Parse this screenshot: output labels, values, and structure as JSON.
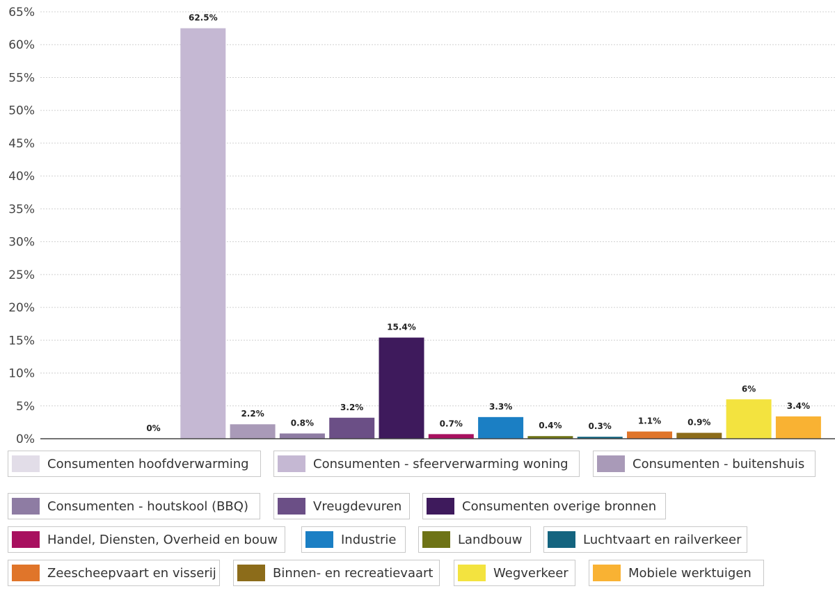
{
  "chart_data": {
    "type": "bar",
    "categories": [
      "Consumenten hoofdverwarming",
      "Consumenten - sfeerverwarming woning",
      "Consumenten - buitenshuis",
      "Consumenten - houtskool (BBQ)",
      "Vreugdevuren",
      "Consumenten overige bronnen",
      "Handel, Diensten, Overheid en bouw",
      "Industrie",
      "Landbouw",
      "Luchtvaart en railverkeer",
      "Zeescheepvaart en visserij",
      "Binnen- en recreatievaart",
      "Wegverkeer",
      "Mobiele werktuigen"
    ],
    "values": [
      0,
      62.5,
      2.2,
      0.8,
      3.2,
      15.4,
      0.7,
      3.3,
      0.4,
      0.3,
      1.1,
      0.9,
      6,
      3.4
    ],
    "value_labels": [
      "0%",
      "62.5%",
      "2.2%",
      "0.8%",
      "3.2%",
      "15.4%",
      "0.7%",
      "3.3%",
      "0.4%",
      "0.3%",
      "1.1%",
      "0.9%",
      "6%",
      "3.4%"
    ],
    "colors": [
      "#e2dde8",
      "#c5b8d3",
      "#a99ab8",
      "#8e7ca3",
      "#6b4f86",
      "#3e1a5c",
      "#a8105f",
      "#1b7fc4",
      "#6e7316",
      "#14647f",
      "#e0752a",
      "#8c6c1a",
      "#f3e33f",
      "#f9b233"
    ],
    "ylim": [
      0,
      65
    ],
    "y_ticks": [
      0,
      5,
      10,
      15,
      20,
      25,
      30,
      35,
      40,
      45,
      50,
      55,
      60,
      65
    ],
    "y_tick_labels": [
      "0%",
      "5%",
      "10%",
      "15%",
      "20%",
      "25%",
      "30%",
      "35%",
      "40%",
      "45%",
      "50%",
      "55%",
      "60%",
      "65%"
    ],
    "grid": true,
    "title": "",
    "xlabel": "",
    "ylabel": "",
    "legend_position": "bottom"
  }
}
